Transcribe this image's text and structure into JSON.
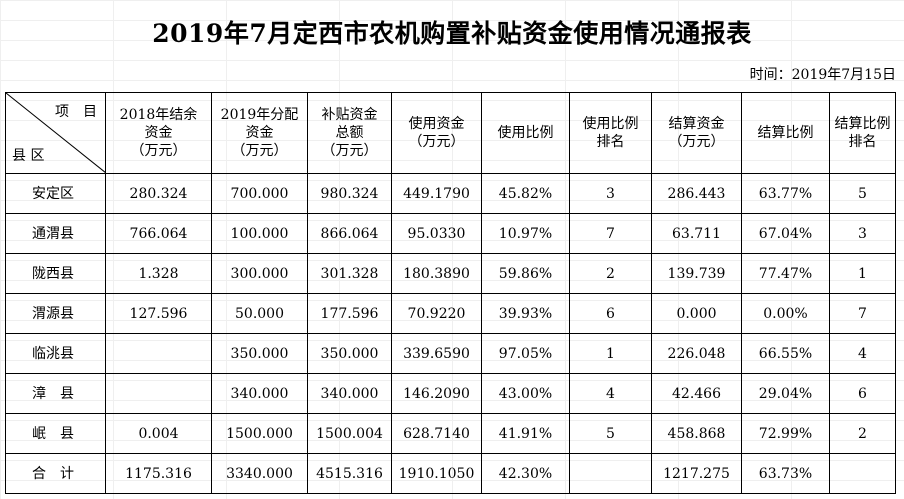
{
  "title": "2019年7月定西市农机购置补贴资金使用情况通报表",
  "date_text": "时间：2019年7月15日",
  "corner": {
    "item_label": "项　目",
    "county_label": "县 区"
  },
  "columns": [
    [
      "2018年结余",
      "资金",
      "（万元）"
    ],
    [
      "2019年分配",
      "资金",
      "（万元）"
    ],
    [
      "补贴资金",
      "总额",
      "（万元）"
    ],
    [
      "使用资金",
      "（万元）"
    ],
    [
      "使用比例"
    ],
    [
      "使用比例",
      "排名"
    ],
    [
      "结算资金",
      "（万元）"
    ],
    [
      "结算比例"
    ],
    [
      "结算比例",
      "排名"
    ]
  ],
  "rows": [
    {
      "county": "安定区",
      "cells": [
        "280.324",
        "700.000",
        "980.324",
        "449.1790",
        "45.82%",
        "3",
        "286.443",
        "63.77%",
        "5"
      ]
    },
    {
      "county": "通渭县",
      "cells": [
        "766.064",
        "100.000",
        "866.064",
        "95.0330",
        "10.97%",
        "7",
        "63.711",
        "67.04%",
        "3"
      ]
    },
    {
      "county": "陇西县",
      "cells": [
        "1.328",
        "300.000",
        "301.328",
        "180.3890",
        "59.86%",
        "2",
        "139.739",
        "77.47%",
        "1"
      ]
    },
    {
      "county": "渭源县",
      "cells": [
        "127.596",
        "50.000",
        "177.596",
        "70.9220",
        "39.93%",
        "6",
        "0.000",
        "0.00%",
        "7"
      ]
    },
    {
      "county": "临洮县",
      "cells": [
        "",
        "350.000",
        "350.000",
        "339.6590",
        "97.05%",
        "1",
        "226.048",
        "66.55%",
        "4"
      ]
    },
    {
      "county": "漳　县",
      "cells": [
        "",
        "340.000",
        "340.000",
        "146.2090",
        "43.00%",
        "4",
        "42.466",
        "29.04%",
        "6"
      ]
    },
    {
      "county": "岷　县",
      "cells": [
        "0.004",
        "1500.000",
        "1500.004",
        "628.7140",
        "41.91%",
        "5",
        "458.868",
        "72.99%",
        "2"
      ]
    },
    {
      "county": "合　计",
      "cells": [
        "1175.316",
        "3340.000",
        "4515.316",
        "1910.1050",
        "42.30%",
        "",
        "1217.275",
        "63.73%",
        ""
      ]
    }
  ]
}
